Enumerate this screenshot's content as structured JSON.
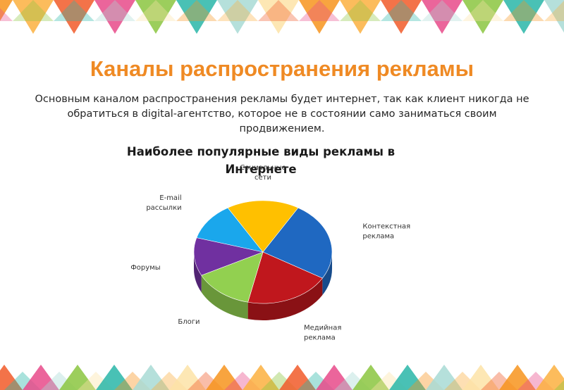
{
  "slide": {
    "title": "Каналы распространения рекламы",
    "subtitle": "Основным каналом распространения рекламы будет интернет, так как клиент никогда не обратиться в digital-агентство, которое не в состоянии само заниматься своим продвижением."
  },
  "chart_data": {
    "type": "pie",
    "title": "Наиболее популярные виды рекламы в Интернете",
    "three_d": true,
    "legend": "none",
    "slices": [
      {
        "label": "Контекстная реклама",
        "value": 25,
        "color": "#1f68c1"
      },
      {
        "label": "Медийная реклама",
        "value": 20,
        "color": "#c0171d"
      },
      {
        "label": "Блоги",
        "value": 14,
        "color": "#92d050"
      },
      {
        "label": "Форумы",
        "value": 12,
        "color": "#7030a0"
      },
      {
        "label": "E-mail рассылки",
        "value": 12,
        "color": "#1aa7ec"
      },
      {
        "label": "Социальные сети",
        "value": 17,
        "color": "#ffc000"
      }
    ]
  },
  "decoration": {
    "colors": [
      "#f7941d",
      "#fbb040",
      "#f15a29",
      "#e84a8a",
      "#8bc53f",
      "#29b6a8",
      "#a8dad5",
      "#fde3a7"
    ]
  }
}
